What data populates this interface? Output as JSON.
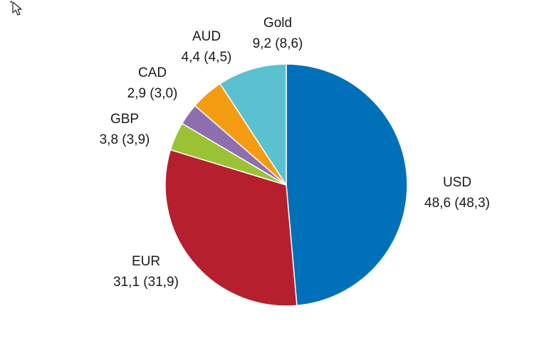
{
  "chart_data": {
    "type": "pie",
    "title": "",
    "start_angle_deg": 0,
    "direction": "clockwise",
    "slices": [
      {
        "label": "USD",
        "value": 48.6,
        "value_text": "48,6 (48,3)",
        "color": "#0070b8"
      },
      {
        "label": "EUR",
        "value": 31.1,
        "value_text": "31,1 (31,9)",
        "color": "#b51f2e"
      },
      {
        "label": "GBP",
        "value": 3.8,
        "value_text": "3,8 (3,9)",
        "color": "#9bc234"
      },
      {
        "label": "CAD",
        "value": 2.9,
        "value_text": "2,9 (3,0)",
        "color": "#8f6eb0"
      },
      {
        "label": "AUD",
        "value": 4.4,
        "value_text": "4,4 (4,5)",
        "color": "#f39c12"
      },
      {
        "label": "Gold",
        "value": 9.2,
        "value_text": "9,2 (8,6)",
        "color": "#5bc0cf"
      }
    ]
  },
  "icons": {
    "cursor": "mouse-pointer-icon"
  }
}
